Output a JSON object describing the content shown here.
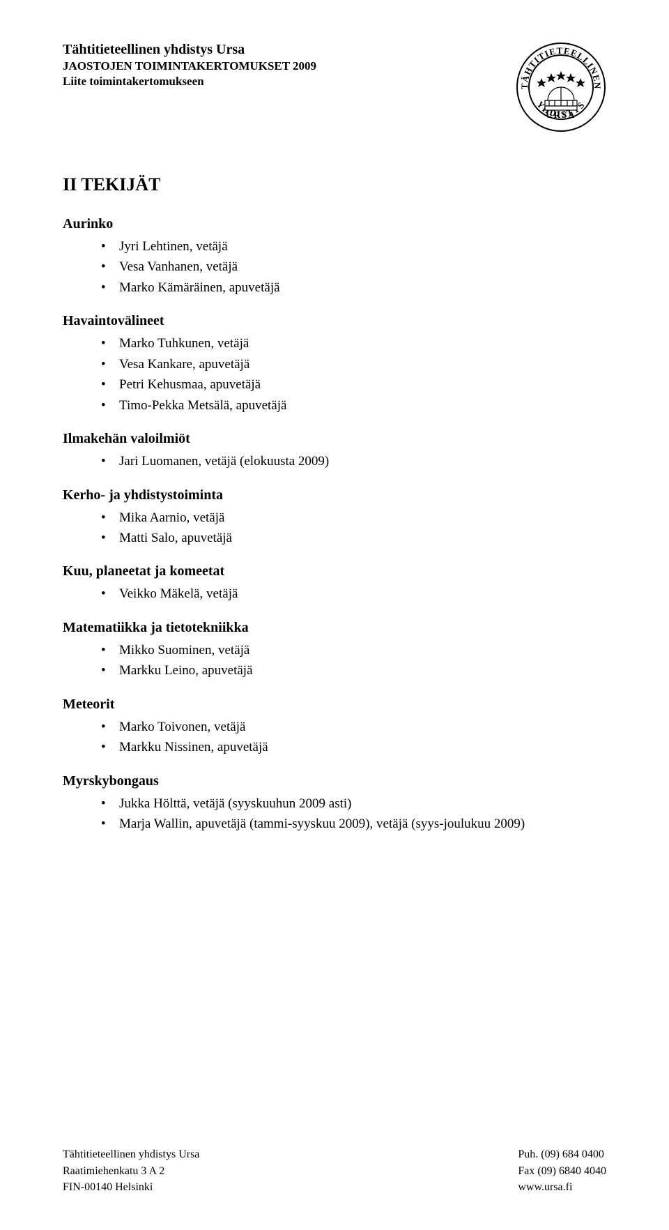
{
  "header": {
    "org": "Tähtitieteellinen yhdistys Ursa",
    "subtitle": "JAOSTOJEN TOIMINTAKERTOMUKSET 2009",
    "annex": "Liite toimintakertomukseen"
  },
  "logo": {
    "outer_text_top": "TÄHTITIETEELLINEN",
    "outer_text_bottom": "YHDISTYS",
    "inner_text": "URSA",
    "stroke": "#000000",
    "fill": "#ffffff"
  },
  "main_title": "II TEKIJÄT",
  "sections": [
    {
      "heading": "Aurinko",
      "items": [
        "Jyri Lehtinen, vetäjä",
        "Vesa Vanhanen, vetäjä",
        "Marko Kämäräinen, apuvetäjä"
      ]
    },
    {
      "heading": "Havaintovälineet",
      "items": [
        "Marko Tuhkunen, vetäjä",
        "Vesa Kankare, apuvetäjä",
        "Petri Kehusmaa, apuvetäjä",
        "Timo-Pekka Metsälä, apuvetäjä"
      ]
    },
    {
      "heading": "Ilmakehän valoilmiöt",
      "items": [
        "Jari Luomanen, vetäjä (elokuusta 2009)"
      ]
    },
    {
      "heading": "Kerho- ja yhdistystoiminta",
      "items": [
        "Mika Aarnio, vetäjä",
        "Matti Salo, apuvetäjä"
      ]
    },
    {
      "heading": "Kuu, planeetat ja komeetat",
      "items": [
        "Veikko Mäkelä, vetäjä"
      ]
    },
    {
      "heading": "Matematiikka ja tietotekniikka",
      "items": [
        "Mikko Suominen, vetäjä",
        "Markku Leino, apuvetäjä"
      ]
    },
    {
      "heading": "Meteorit",
      "items": [
        "Marko Toivonen, vetäjä",
        "Markku Nissinen, apuvetäjä"
      ]
    },
    {
      "heading": "Myrskybongaus",
      "items": [
        "Jukka Hölttä, vetäjä (syyskuuhun 2009 asti)",
        "Marja Wallin, apuvetäjä (tammi-syyskuu 2009), vetäjä (syys-joulukuu 2009)"
      ]
    }
  ],
  "footer": {
    "left": [
      "Tähtitieteellinen yhdistys Ursa",
      "Raatimiehenkatu 3 A 2",
      "FIN-00140 Helsinki"
    ],
    "right": [
      "Puh. (09) 684 0400",
      "Fax (09) 6840 4040",
      "www.ursa.fi"
    ]
  }
}
